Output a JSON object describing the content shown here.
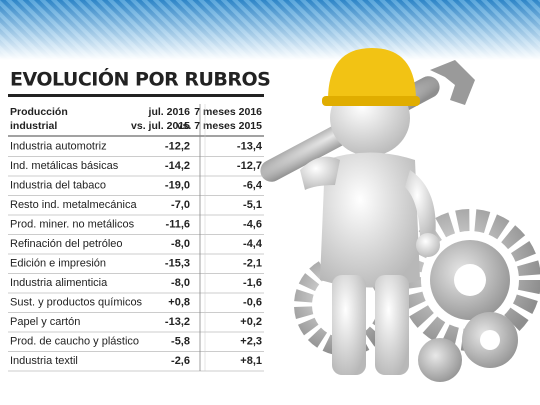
{
  "title": "EVOLUCIÓN POR RUBROS",
  "table": {
    "header": [
      [
        "Producción",
        "industrial"
      ],
      [
        "jul. 2016",
        "vs. jul. 2015"
      ],
      [
        "7 meses 2016",
        "vs. 7 meses 2015"
      ]
    ],
    "rows": [
      [
        "Industria automotriz",
        "-12,2",
        "-13,4"
      ],
      [
        "Ind. metálicas básicas",
        "-14,2",
        "-12,7"
      ],
      [
        "Industria del tabaco",
        "-19,0",
        "-6,4"
      ],
      [
        "Resto ind. metalmecánica",
        "-7,0",
        "-5,1"
      ],
      [
        "Prod. miner. no metálicos",
        "-11,6",
        "-4,6"
      ],
      [
        "Refinación del petróleo",
        "-8,0",
        "-4,4"
      ],
      [
        "Edición e impresión",
        "-15,3",
        "-2,1"
      ],
      [
        "Industria alimenticia",
        "-8,0",
        "-1,6"
      ],
      [
        "Sust. y productos químicos",
        "+0,8",
        "-0,6"
      ],
      [
        "Papel y cartón",
        "-13,2",
        "+0,2"
      ],
      [
        "Prod. de caucho y plástico",
        "-5,8",
        "+2,3"
      ],
      [
        "Industria textil",
        "-2,6",
        "+8,1"
      ]
    ]
  }
}
